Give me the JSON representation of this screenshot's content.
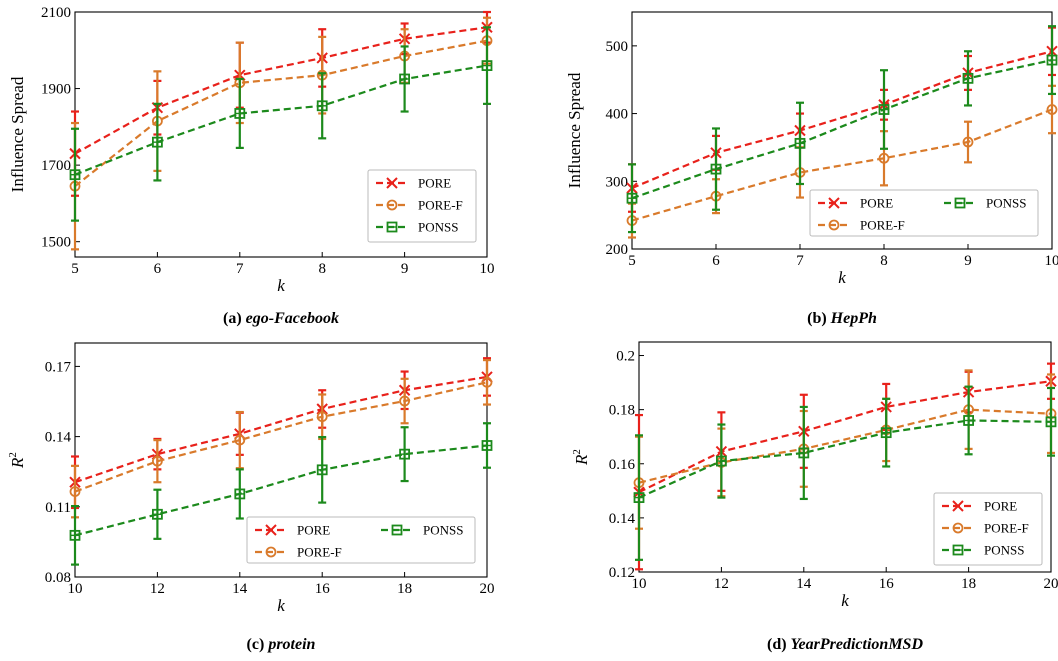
{
  "colors": {
    "PORE": "#e8211b",
    "PORE-F": "#d97a2b",
    "PONSS": "#1c8a1c"
  },
  "charts": [
    {
      "type": "line",
      "caption_label": "(a)",
      "caption_name": "ego-Facebook",
      "xlabel": "k",
      "ylabel": "Influence Spread",
      "xlim": [
        5,
        10
      ],
      "ylim": [
        1460,
        2100
      ],
      "x_ticks": [
        5,
        6,
        7,
        8,
        9,
        10
      ],
      "x_tick_labels": [
        "5",
        "6",
        "7",
        "8",
        "9",
        "10"
      ],
      "y_ticks": [
        1500,
        1700,
        1900,
        2100
      ],
      "y_tick_labels": [
        "1500",
        "1700",
        "1900",
        "2100"
      ],
      "x": [
        5,
        6,
        7,
        8,
        9,
        10
      ],
      "legend_position": "bottom-right",
      "series": [
        {
          "name": "PORE",
          "marker": "x",
          "values": [
            1730,
            1850,
            1935,
            1980,
            2030,
            2060
          ],
          "errors": [
            110,
            70,
            85,
            75,
            40,
            40
          ]
        },
        {
          "name": "PORE-F",
          "marker": "o",
          "values": [
            1645,
            1815,
            1915,
            1935,
            1985,
            2025
          ],
          "errors": [
            165,
            130,
            105,
            100,
            70,
            60
          ]
        },
        {
          "name": "PONSS",
          "marker": "s",
          "values": [
            1675,
            1760,
            1835,
            1855,
            1925,
            1960
          ],
          "errors": [
            120,
            100,
            90,
            85,
            85,
            100
          ]
        }
      ]
    },
    {
      "type": "line",
      "caption_label": "(b)",
      "caption_name": "HepPh",
      "xlabel": "k",
      "ylabel": "Influence Spread",
      "xlim": [
        5,
        10
      ],
      "ylim": [
        200,
        550
      ],
      "x_ticks": [
        5,
        6,
        7,
        8,
        9,
        10
      ],
      "x_tick_labels": [
        "5",
        "6",
        "7",
        "8",
        "9",
        "10"
      ],
      "y_ticks": [
        200,
        300,
        400,
        500
      ],
      "y_tick_labels": [
        "200",
        "300",
        "400",
        "500"
      ],
      "x": [
        5,
        6,
        7,
        8,
        9,
        10
      ],
      "legend_position": "bottom-right-two-column",
      "series": [
        {
          "name": "PORE",
          "marker": "x",
          "values": [
            290,
            342,
            375,
            413,
            460,
            492
          ],
          "errors": [
            35,
            25,
            25,
            22,
            25,
            35
          ]
        },
        {
          "name": "PORE-F",
          "marker": "o",
          "values": [
            242,
            278,
            313,
            334,
            358,
            406
          ],
          "errors": [
            25,
            25,
            37,
            40,
            30,
            35
          ]
        },
        {
          "name": "PONSS",
          "marker": "s",
          "values": [
            275,
            318,
            356,
            406,
            452,
            479
          ],
          "errors": [
            50,
            60,
            60,
            58,
            40,
            50
          ]
        }
      ]
    },
    {
      "type": "line",
      "caption_label": "(c)",
      "caption_name": "protein",
      "xlabel": "k",
      "ylabel": "R",
      "ylabel_superscript": "2",
      "xlim": [
        10,
        20
      ],
      "ylim": [
        0.08,
        0.18
      ],
      "x_ticks": [
        10,
        12,
        14,
        16,
        18,
        20
      ],
      "x_tick_labels": [
        "10",
        "12",
        "14",
        "16",
        "18",
        "20"
      ],
      "y_ticks": [
        0.08,
        0.11,
        0.14,
        0.17
      ],
      "y_tick_labels": [
        "0.08",
        "0.11",
        "0.14",
        "0.17"
      ],
      "x": [
        10,
        12,
        14,
        16,
        18,
        20
      ],
      "legend_position": "bottom-right-two-column",
      "series": [
        {
          "name": "PORE",
          "marker": "x",
          "values": [
            0.1205,
            0.1325,
            0.1412,
            0.1518,
            0.1598,
            0.1655
          ],
          "errors": [
            0.011,
            0.0065,
            0.009,
            0.008,
            0.008,
            0.008
          ]
        },
        {
          "name": "PORE-F",
          "marker": "o",
          "values": [
            0.1165,
            0.1295,
            0.1385,
            0.1485,
            0.1552,
            0.1632
          ],
          "errors": [
            0.011,
            0.009,
            0.012,
            0.0095,
            0.0095,
            0.0095
          ]
        },
        {
          "name": "PONSS",
          "marker": "s",
          "values": [
            0.0978,
            0.1068,
            0.1155,
            0.1258,
            0.1325,
            0.1362
          ],
          "errors": [
            0.0125,
            0.0105,
            0.0105,
            0.014,
            0.0115,
            0.0095
          ]
        }
      ]
    },
    {
      "type": "line",
      "caption_label": "(d)",
      "caption_name": "YearPredictionMSD",
      "xlabel": "k",
      "ylabel": "R",
      "ylabel_superscript": "2",
      "xlim": [
        10,
        20
      ],
      "ylim": [
        0.12,
        0.205
      ],
      "x_ticks": [
        10,
        12,
        14,
        16,
        18,
        20
      ],
      "x_tick_labels": [
        "10",
        "12",
        "14",
        "16",
        "18",
        "20"
      ],
      "y_ticks": [
        0.12,
        0.14,
        0.16,
        0.18,
        0.2
      ],
      "y_tick_labels": [
        "0.12",
        "0.14",
        "0.16",
        "0.18",
        "0.2"
      ],
      "x": [
        10,
        12,
        14,
        16,
        18,
        20
      ],
      "legend_position": "bottom-right",
      "series": [
        {
          "name": "PORE",
          "marker": "x",
          "values": [
            0.1495,
            0.1645,
            0.172,
            0.181,
            0.1865,
            0.1905
          ],
          "errors": [
            0.0285,
            0.0145,
            0.0135,
            0.0085,
            0.0075,
            0.0065
          ]
        },
        {
          "name": "PORE-F",
          "marker": "o",
          "values": [
            0.153,
            0.1605,
            0.1655,
            0.1725,
            0.18,
            0.1785
          ],
          "errors": [
            0.017,
            0.0125,
            0.014,
            0.0115,
            0.0145,
            0.0145
          ]
        },
        {
          "name": "PONSS",
          "marker": "s",
          "values": [
            0.1475,
            0.161,
            0.164,
            0.1715,
            0.176,
            0.1755
          ],
          "errors": [
            0.023,
            0.0135,
            0.017,
            0.0125,
            0.0125,
            0.0125
          ]
        }
      ]
    }
  ]
}
